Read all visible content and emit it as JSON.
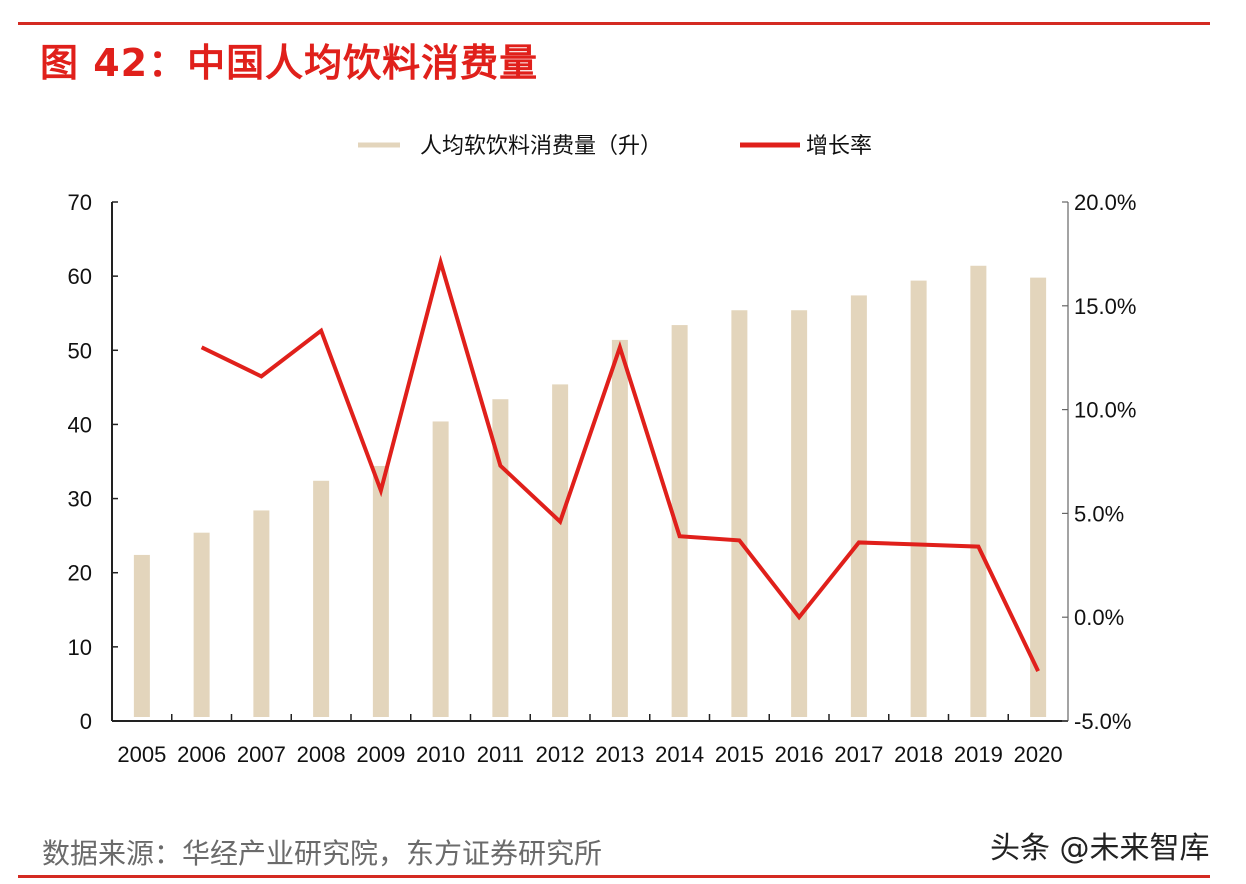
{
  "title": "图 42：中国人均饮料消费量",
  "source": "数据来源：华经产业研究院，东方证券研究所",
  "watermark": "头条 @未来智库",
  "colors": {
    "bar": "#e3d5bc",
    "line": "#e0201b",
    "title": "#e0201b",
    "rule": "#d42a22"
  },
  "chart_data": {
    "type": "bar+line",
    "categories": [
      "2005",
      "2006",
      "2007",
      "2008",
      "2009",
      "2010",
      "2011",
      "2012",
      "2013",
      "2014",
      "2015",
      "2016",
      "2017",
      "2018",
      "2019",
      "2020"
    ],
    "series": [
      {
        "name": "人均软饮料消费量（升）",
        "type": "bar",
        "axis": "left",
        "values": [
          22.4,
          25.4,
          28.4,
          32.4,
          34.4,
          40.4,
          43.4,
          45.4,
          51.4,
          53.4,
          55.4,
          55.4,
          57.4,
          59.4,
          61.4,
          59.8
        ]
      },
      {
        "name": "增长率",
        "type": "line",
        "axis": "right",
        "unit": "%",
        "values": [
          null,
          13.0,
          11.6,
          13.8,
          6.1,
          17.1,
          7.3,
          4.6,
          13.0,
          3.9,
          3.7,
          0.0,
          3.6,
          3.5,
          3.4,
          -2.6
        ]
      }
    ],
    "left_axis": {
      "ylim": [
        0,
        70
      ],
      "ticks": [
        "0",
        "10",
        "20",
        "30",
        "40",
        "50",
        "60",
        "70"
      ]
    },
    "right_axis": {
      "ylim": [
        -5,
        20
      ],
      "ticks": [
        "-5.0%",
        "0.0%",
        "5.0%",
        "10.0%",
        "15.0%",
        "20.0%"
      ]
    },
    "legend": "top-center",
    "grid": false
  }
}
